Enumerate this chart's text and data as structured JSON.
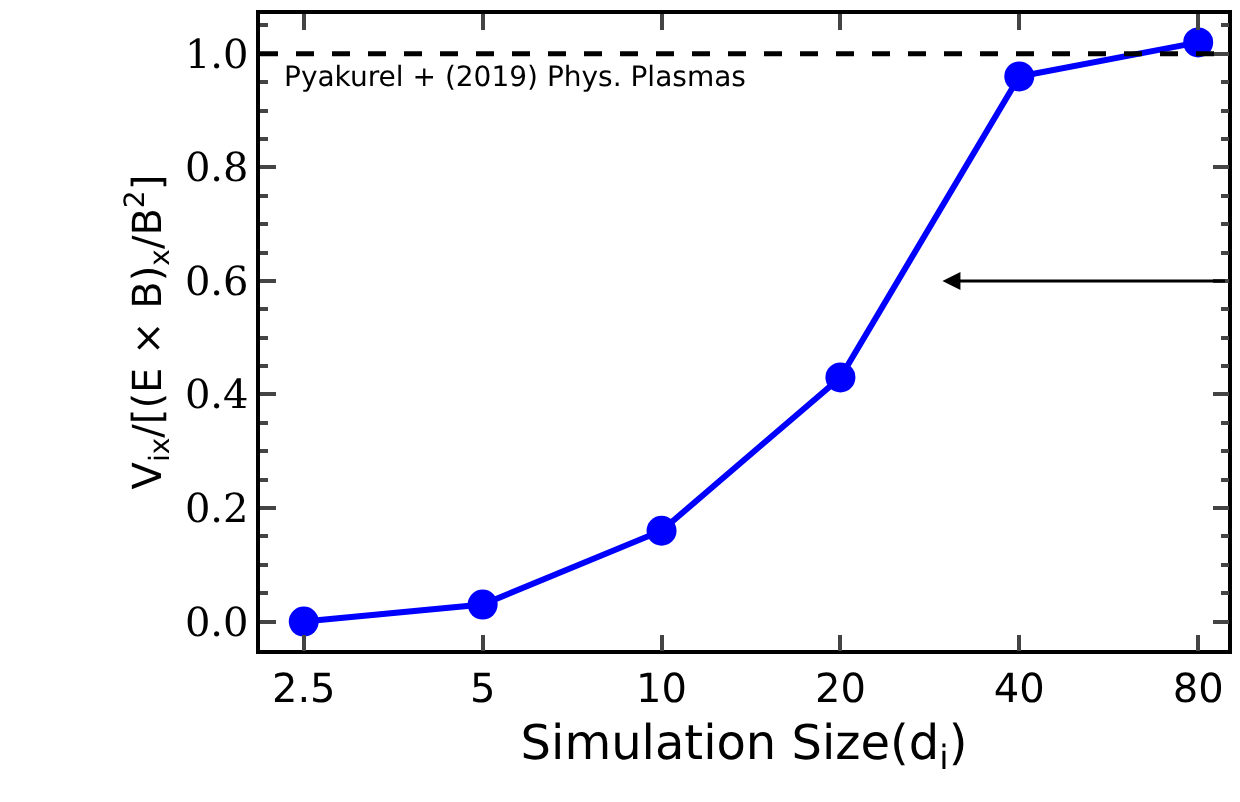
{
  "chart_data": {
    "type": "line",
    "xlabel": "Simulation Size(d$_{i}$)",
    "ylabel": "V$_{ix}$/[(E × B)$_{x}$/B$^{2}$]",
    "x": [
      2.5,
      5,
      10,
      20,
      40,
      80
    ],
    "series": [
      {
        "color": "#0000ff",
        "values": [
          0.0,
          0.03,
          0.16,
          0.43,
          0.96,
          1.02
        ]
      }
    ],
    "log": "x",
    "xlim": [
      2.11,
      89.8
    ],
    "xticks": [
      2.5,
      5,
      10,
      20,
      40,
      80
    ],
    "ylim": [
      -0.05,
      1.07
    ],
    "yticks": [
      {
        "value": 0,
        "label": "0.0"
      },
      0.2,
      0.4,
      0.6,
      0.8,
      {
        "value": 1,
        "label": "1.0"
      }
    ],
    "ref_lines": [
      {
        "axis": "y",
        "value": 1.0,
        "label": "Pyakurel + (2019) Phys. Plasmas",
        "color": "#000000",
        "line_style": "dashed"
      }
    ],
    "marker": "circle",
    "line_style": "solid"
  }
}
